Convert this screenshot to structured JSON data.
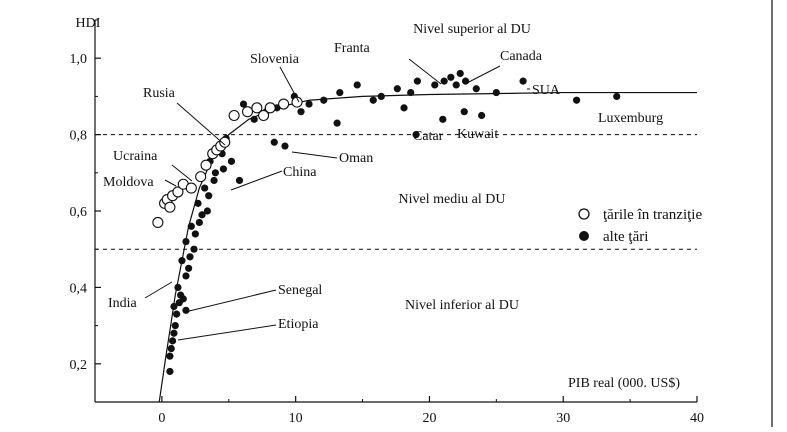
{
  "chart_data": {
    "type": "scatter",
    "xlabel": "PIB real (000. US$)",
    "ylabel": "HDI",
    "xlim": [
      -5,
      40
    ],
    "ylim": [
      0.1,
      1.1
    ],
    "x_ticks": [
      0,
      10,
      20,
      30,
      40
    ],
    "x_tick_labels": [
      "0",
      "10",
      "20",
      "30",
      "40"
    ],
    "y_ticks": [
      0.2,
      0.4,
      0.6,
      0.8,
      1.0
    ],
    "y_tick_labels": [
      "0,2",
      "0,4",
      "0,6",
      "0,8",
      "1,0"
    ],
    "grid": false,
    "legend_placement": "right-middle",
    "legend": [
      {
        "label": "ţările în tranziţie",
        "marker": "open-circle"
      },
      {
        "label": "alte ţări",
        "marker": "filled-circle"
      }
    ],
    "thresholds": [
      {
        "y": 0.8,
        "style": "dashed"
      },
      {
        "y": 0.5,
        "style": "dashed"
      }
    ],
    "level_labels": [
      {
        "text": "Nivel superior al DU"
      },
      {
        "text": "Nivel mediu al DU"
      },
      {
        "text": "Nivel inferior al DU"
      }
    ],
    "trend_curve": [
      [
        -0.2,
        0.1
      ],
      [
        0.3,
        0.22
      ],
      [
        0.7,
        0.31
      ],
      [
        1.0,
        0.38
      ],
      [
        1.5,
        0.47
      ],
      [
        2.0,
        0.56
      ],
      [
        2.8,
        0.66
      ],
      [
        3.8,
        0.74
      ],
      [
        5.0,
        0.8
      ],
      [
        6.5,
        0.84
      ],
      [
        8.5,
        0.87
      ],
      [
        11,
        0.89
      ],
      [
        15,
        0.9
      ],
      [
        20,
        0.905
      ],
      [
        30,
        0.91
      ],
      [
        40,
        0.91
      ]
    ],
    "series": [
      {
        "name": "ţările în tranziţie",
        "marker": "open",
        "points": [
          [
            -0.3,
            0.57
          ],
          [
            0.2,
            0.62
          ],
          [
            0.4,
            0.63
          ],
          [
            0.6,
            0.61
          ],
          [
            0.8,
            0.64
          ],
          [
            1.2,
            0.65
          ],
          [
            1.6,
            0.67
          ],
          [
            2.2,
            0.66
          ],
          [
            2.9,
            0.69
          ],
          [
            3.3,
            0.72
          ],
          [
            3.8,
            0.75
          ],
          [
            4.1,
            0.76
          ],
          [
            4.4,
            0.77
          ],
          [
            4.7,
            0.78
          ],
          [
            5.4,
            0.85
          ],
          [
            6.4,
            0.86
          ],
          [
            7.1,
            0.87
          ],
          [
            7.6,
            0.85
          ],
          [
            8.1,
            0.87
          ],
          [
            9.1,
            0.88
          ],
          [
            10.1,
            0.885
          ]
        ]
      },
      {
        "name": "alte ţări",
        "marker": "filled",
        "points": [
          [
            0.6,
            0.18
          ],
          [
            0.6,
            0.22
          ],
          [
            0.7,
            0.24
          ],
          [
            0.8,
            0.26
          ],
          [
            0.9,
            0.28
          ],
          [
            1.0,
            0.3
          ],
          [
            1.1,
            0.33
          ],
          [
            0.9,
            0.35
          ],
          [
            1.3,
            0.36
          ],
          [
            1.4,
            0.38
          ],
          [
            1.6,
            0.37
          ],
          [
            1.8,
            0.34
          ],
          [
            1.2,
            0.4
          ],
          [
            1.8,
            0.43
          ],
          [
            2.0,
            0.45
          ],
          [
            1.5,
            0.47
          ],
          [
            2.1,
            0.48
          ],
          [
            2.4,
            0.5
          ],
          [
            1.8,
            0.52
          ],
          [
            2.5,
            0.54
          ],
          [
            2.2,
            0.56
          ],
          [
            2.8,
            0.57
          ],
          [
            3.0,
            0.59
          ],
          [
            3.4,
            0.6
          ],
          [
            2.7,
            0.62
          ],
          [
            3.5,
            0.64
          ],
          [
            3.2,
            0.66
          ],
          [
            3.9,
            0.68
          ],
          [
            4.0,
            0.7
          ],
          [
            4.6,
            0.71
          ],
          [
            3.6,
            0.73
          ],
          [
            4.5,
            0.75
          ],
          [
            5.2,
            0.73
          ],
          [
            4.8,
            0.79
          ],
          [
            5.8,
            0.68
          ],
          [
            6.1,
            0.88
          ],
          [
            6.9,
            0.84
          ],
          [
            7.8,
            0.86
          ],
          [
            8.6,
            0.87
          ],
          [
            8.4,
            0.78
          ],
          [
            9.2,
            0.77
          ],
          [
            9.9,
            0.9
          ],
          [
            10.4,
            0.86
          ],
          [
            11.0,
            0.88
          ],
          [
            12.1,
            0.89
          ],
          [
            13.3,
            0.91
          ],
          [
            14.6,
            0.93
          ],
          [
            15.8,
            0.89
          ],
          [
            16.4,
            0.9
          ],
          [
            17.6,
            0.92
          ],
          [
            18.6,
            0.91
          ],
          [
            19.1,
            0.94
          ],
          [
            20.4,
            0.93
          ],
          [
            21.1,
            0.94
          ],
          [
            21.6,
            0.95
          ],
          [
            22.0,
            0.93
          ],
          [
            22.3,
            0.96
          ],
          [
            22.7,
            0.94
          ],
          [
            23.5,
            0.92
          ],
          [
            25.0,
            0.91
          ],
          [
            27.0,
            0.94
          ],
          [
            31.0,
            0.89
          ],
          [
            34.0,
            0.9
          ],
          [
            13.1,
            0.83
          ],
          [
            18.1,
            0.87
          ],
          [
            21.0,
            0.84
          ],
          [
            22.6,
            0.86
          ],
          [
            23.9,
            0.85
          ],
          [
            19.0,
            0.8
          ]
        ]
      }
    ],
    "annotations": [
      {
        "text": "Slovenia"
      },
      {
        "text": "Franta"
      },
      {
        "text": "Canada"
      },
      {
        "text": "SUA"
      },
      {
        "text": "Luxemburg"
      },
      {
        "text": "Rusia"
      },
      {
        "text": "Ucraina"
      },
      {
        "text": "Moldova"
      },
      {
        "text": "Oman"
      },
      {
        "text": "China"
      },
      {
        "text": "Catar"
      },
      {
        "text": "Kuwait"
      },
      {
        "text": "India"
      },
      {
        "text": "Senegal"
      },
      {
        "text": "Etiopia"
      }
    ]
  }
}
